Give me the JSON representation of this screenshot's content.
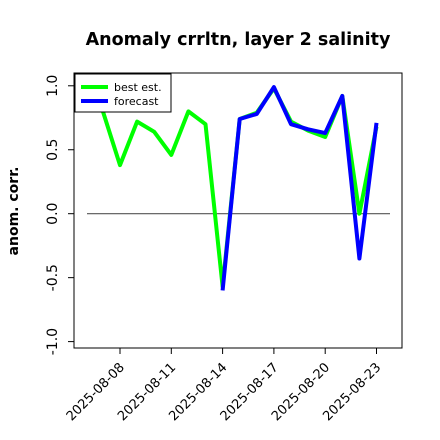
{
  "chart_data": {
    "type": "line",
    "title": "Anomaly crrltn, layer 2 salinity",
    "xlabel": "",
    "ylabel": "anom. corr.",
    "ylim": [
      -1.05,
      1.1
    ],
    "yticks": [
      "-1.0",
      "-0.5",
      "0.0",
      "0.5",
      "1.0"
    ],
    "ytick_values": [
      -1.0,
      -0.5,
      0.0,
      0.5,
      1.0
    ],
    "xticks": [
      "2025-08-08",
      "2025-08-11",
      "2025-08-14",
      "2025-08-17",
      "2025-08-20",
      "2025-08-23"
    ],
    "highlight_xtick": "2025-08-14",
    "highlight_color": "#228B22",
    "reference_line": 0.0,
    "grid": false,
    "legend_position": "top-left",
    "series": [
      {
        "name": "best est.",
        "color": "#00ff00",
        "x": [
          "2025-08-07",
          "2025-08-08",
          "2025-08-09",
          "2025-08-10",
          "2025-08-11",
          "2025-08-12",
          "2025-08-13",
          "2025-08-14",
          "2025-08-15",
          "2025-08-16",
          "2025-08-17",
          "2025-08-18",
          "2025-08-19",
          "2025-08-20",
          "2025-08-21",
          "2025-08-22",
          "2025-08-23"
        ],
        "values": [
          0.8,
          0.38,
          0.72,
          0.64,
          0.46,
          0.8,
          0.7,
          -0.57,
          0.74,
          0.79,
          0.98,
          0.72,
          0.65,
          0.6,
          0.92,
          0.0,
          0.68
        ]
      },
      {
        "name": "forecast",
        "color": "#0000ff",
        "x": [
          "2025-08-14",
          "2025-08-15",
          "2025-08-16",
          "2025-08-17",
          "2025-08-18",
          "2025-08-19",
          "2025-08-20",
          "2025-08-21",
          "2025-08-22",
          "2025-08-23"
        ],
        "values": [
          -0.6,
          0.74,
          0.78,
          0.99,
          0.7,
          0.66,
          0.63,
          0.92,
          -0.35,
          0.71
        ]
      }
    ]
  }
}
